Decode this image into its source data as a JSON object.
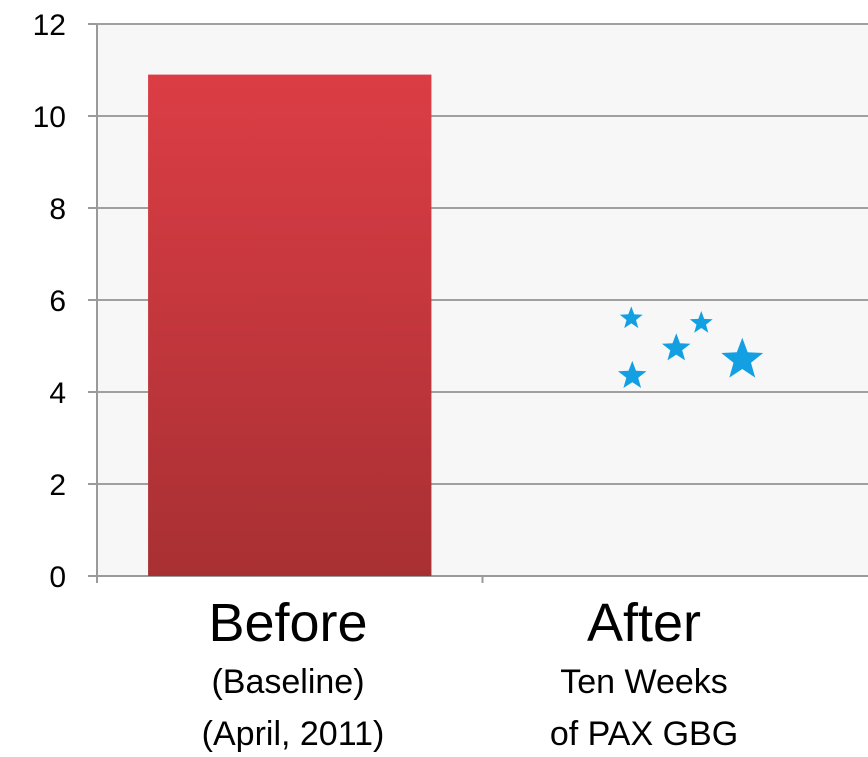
{
  "chart_data": {
    "type": "bar",
    "categories": [
      {
        "title": "Before",
        "subtitle_lines": [
          "(Baseline)",
          "(April, 2011)"
        ]
      },
      {
        "title": "After",
        "subtitle_lines": [
          "Ten Weeks",
          "of PAX GBG"
        ]
      }
    ],
    "values": [
      10.9,
      null
    ],
    "after_markers": [
      {
        "shape": "star",
        "value": 5.6
      },
      {
        "shape": "star",
        "value": 5.5
      },
      {
        "shape": "star",
        "value": 4.95
      },
      {
        "shape": "star",
        "value": 4.7
      },
      {
        "shape": "star",
        "value": 4.35
      }
    ],
    "y_ticks": [
      "0",
      "2",
      "4",
      "6",
      "8",
      "10",
      "12"
    ],
    "ylim": [
      0,
      12
    ],
    "grid": true,
    "colors": {
      "bar_top": "#dc3d45",
      "bar_bottom": "#a83033",
      "star": "#12a0e2",
      "grid": "#a0a0a0",
      "plot_bg": "#f7f7f7"
    }
  }
}
